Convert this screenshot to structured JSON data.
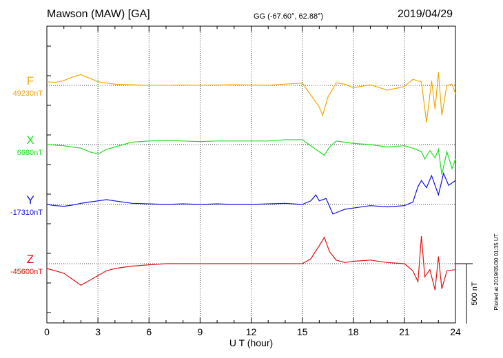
{
  "header": {
    "station": "Mawson (MAW)  [GA]",
    "coords": "GG (-67.60°,  62.88°)",
    "date": "2019/04/29"
  },
  "footer": {
    "plotted": "Plotted at 2019/05/30 01:35 UT"
  },
  "chart_data": {
    "type": "line",
    "xlabel": "U T (hour)",
    "xlim": [
      0,
      24
    ],
    "x_ticks": [
      "0",
      "3",
      "6",
      "9",
      "12",
      "15",
      "18",
      "21",
      "24"
    ],
    "scale_bar": "500 nT",
    "grid": true,
    "series": [
      {
        "name": "F",
        "baseline": "49230nT",
        "color": "#f5a800",
        "x": [
          0,
          0.5,
          1,
          1.5,
          2,
          2.5,
          3,
          3.5,
          4,
          5,
          6,
          7,
          8,
          9,
          10,
          11,
          12,
          13,
          14,
          15,
          15.3,
          15.6,
          16,
          16.2,
          16.5,
          17,
          17.5,
          18,
          19,
          20,
          21,
          21.5,
          22,
          22.3,
          22.6,
          22.8,
          23,
          23.2,
          23.5,
          23.8,
          24
        ],
        "values": [
          30,
          25,
          40,
          70,
          90,
          60,
          30,
          20,
          10,
          5,
          0,
          2,
          3,
          2,
          4,
          5,
          3,
          2,
          10,
          20,
          -40,
          -100,
          -180,
          -250,
          -100,
          20,
          10,
          -20,
          5,
          -40,
          -10,
          50,
          30,
          -310,
          40,
          -200,
          110,
          -250,
          0,
          10,
          -70
        ]
      },
      {
        "name": "X",
        "baseline": "6680nT",
        "color": "#1ee01e",
        "x": [
          0,
          0.5,
          1,
          1.5,
          2,
          2.5,
          3,
          3.5,
          4,
          5,
          6,
          7,
          8,
          9,
          10,
          11,
          12,
          13,
          14,
          15,
          15.5,
          16,
          16.3,
          16.6,
          17,
          18,
          19,
          20,
          21,
          21.5,
          22,
          22.2,
          22.5,
          22.8,
          23,
          23.2,
          23.5,
          23.8,
          24
        ],
        "values": [
          0,
          -5,
          -10,
          -20,
          -30,
          -60,
          -80,
          -40,
          -20,
          20,
          30,
          35,
          30,
          25,
          30,
          30,
          30,
          30,
          40,
          40,
          -10,
          -60,
          -90,
          -20,
          30,
          10,
          0,
          -20,
          -10,
          -30,
          -60,
          -120,
          -50,
          -110,
          -40,
          -250,
          -60,
          -200,
          -120
        ]
      },
      {
        "name": "Y",
        "baseline": "-17310nT",
        "color": "#1010e0",
        "x": [
          0,
          0.5,
          1,
          1.5,
          2,
          2.5,
          3,
          3.5,
          4,
          5,
          6,
          7,
          8,
          9,
          10,
          11,
          12,
          13,
          14,
          15,
          15.5,
          15.8,
          16,
          16.4,
          16.8,
          17.5,
          18,
          19,
          20,
          21,
          21.5,
          21.8,
          22,
          22.3,
          22.6,
          23,
          23.3,
          23.6,
          24
        ],
        "values": [
          0,
          -10,
          -15,
          -5,
          10,
          20,
          30,
          40,
          30,
          10,
          5,
          0,
          5,
          0,
          5,
          0,
          0,
          5,
          10,
          0,
          30,
          80,
          30,
          50,
          -80,
          -40,
          -30,
          -10,
          -20,
          -10,
          20,
          150,
          200,
          140,
          240,
          80,
          260,
          160,
          200
        ]
      },
      {
        "name": "Z",
        "baseline": "-45600nT",
        "color": "#e01010",
        "x": [
          0,
          0.5,
          1,
          1.5,
          2,
          2.5,
          3,
          3.5,
          4,
          5,
          6,
          7,
          8,
          9,
          10,
          11,
          12,
          13,
          14,
          15,
          15.5,
          16,
          16.3,
          16.6,
          17,
          17.5,
          18,
          19,
          20,
          21,
          21.5,
          21.8,
          22,
          22.2,
          22.5,
          22.8,
          23,
          23.2,
          23.5,
          24
        ],
        "values": [
          -40,
          -60,
          -80,
          -130,
          -180,
          -140,
          -100,
          -60,
          -40,
          -20,
          -10,
          0,
          0,
          0,
          0,
          0,
          0,
          0,
          0,
          0,
          40,
          150,
          220,
          100,
          30,
          10,
          20,
          30,
          10,
          0,
          -60,
          -150,
          230,
          -110,
          -50,
          -220,
          60,
          -210,
          -60,
          -50
        ]
      }
    ]
  }
}
